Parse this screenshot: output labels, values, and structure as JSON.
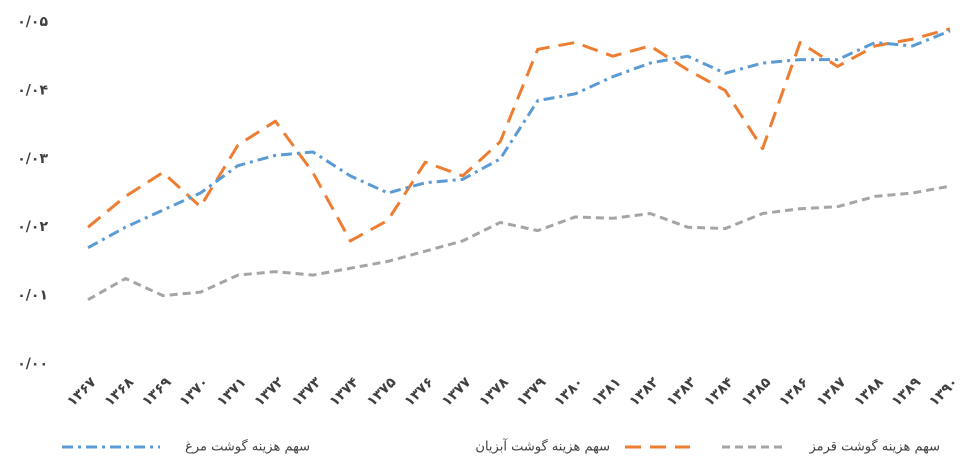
{
  "chart_data": {
    "type": "line",
    "categories": [
      "۱۳۶۷",
      "۱۳۶۸",
      "۱۳۶۹",
      "۱۳۷۰",
      "۱۳۷۱",
      "۱۳۷۲",
      "۱۳۷۳",
      "۱۳۷۴",
      "۱۳۷۵",
      "۱۳۷۶",
      "۱۳۷۷",
      "۱۳۷۸",
      "۱۳۷۹",
      "۱۳۸۰",
      "۱۳۸۱",
      "۱۳۸۲",
      "۱۳۸۳",
      "۱۳۸۴",
      "۱۳۸۵",
      "۱۳۸۶",
      "۱۳۸۷",
      "۱۳۸۸",
      "۱۳۸۹",
      "۱۳۹۰"
    ],
    "series": [
      {
        "name": "سهم هزینه گوشت قرمز",
        "color": "#a5a5a5",
        "values": [
          0.0094,
          0.0125,
          0.01,
          0.0105,
          0.013,
          0.0135,
          0.013,
          0.014,
          0.015,
          0.0165,
          0.018,
          0.0207,
          0.0195,
          0.0215,
          0.0213,
          0.022,
          0.02,
          0.0198,
          0.022,
          0.0227,
          0.023,
          0.0245,
          0.025,
          0.026
        ]
      },
      {
        "name": "سهم هزینه گوشت آبزیان",
        "color": "#ed7d31",
        "values": [
          0.02,
          0.0245,
          0.028,
          0.023,
          0.032,
          0.0355,
          0.028,
          0.018,
          0.021,
          0.0295,
          0.0275,
          0.0325,
          0.046,
          0.047,
          0.045,
          0.0465,
          0.043,
          0.04,
          0.0315,
          0.047,
          0.0435,
          0.0465,
          0.0475,
          0.049
        ]
      },
      {
        "name": "سهم هزینه گوشت مرغ",
        "color": "#5b9bd5",
        "values": [
          0.017,
          0.02,
          0.0225,
          0.025,
          0.029,
          0.0305,
          0.031,
          0.0275,
          0.025,
          0.0265,
          0.027,
          0.03,
          0.0385,
          0.0395,
          0.042,
          0.044,
          0.045,
          0.0425,
          0.044,
          0.0445,
          0.0445,
          0.047,
          0.0465,
          0.0487
        ]
      }
    ],
    "ylim": [
      0,
      0.05
    ],
    "yticks": [
      {
        "value": 0,
        "label": "۰/۰۰"
      },
      {
        "value": 0.01,
        "label": "۰/۰۱"
      },
      {
        "value": 0.02,
        "label": "۰/۰۲"
      },
      {
        "value": 0.03,
        "label": "۰/۰۳"
      },
      {
        "value": 0.04,
        "label": "۰/۰۴"
      },
      {
        "value": 0.05,
        "label": "۰/۰۵"
      }
    ],
    "legend": "bottom"
  }
}
